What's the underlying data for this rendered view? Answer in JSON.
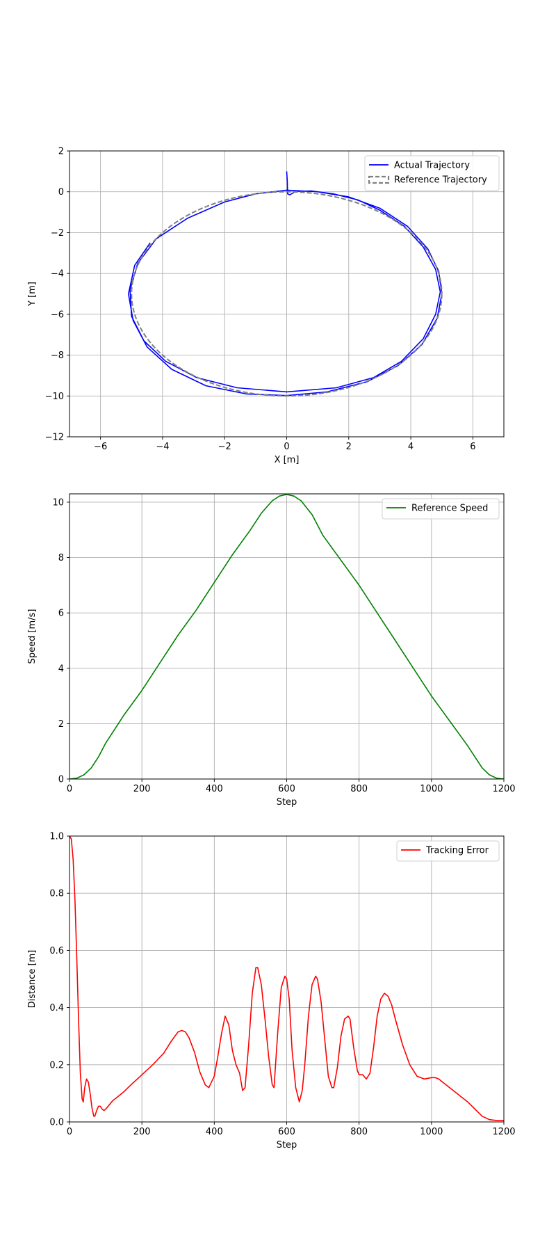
{
  "chart_data": [
    {
      "type": "line",
      "xlabel": "X [m]",
      "ylabel": "Y [m]",
      "xlim": [
        -7,
        7
      ],
      "ylim": [
        -12,
        2
      ],
      "xticks": [
        -6,
        -4,
        -2,
        0,
        2,
        4,
        6
      ],
      "yticks": [
        -12,
        -10,
        -8,
        -6,
        -4,
        -2,
        0,
        2
      ],
      "grid": true,
      "legend_position": "top-right",
      "series": [
        {
          "name": "Actual Trajectory",
          "color": "#0000ff",
          "style": "solid",
          "path": [
            [
              0.0,
              1.0
            ],
            [
              0.02,
              0.5
            ],
            [
              0.03,
              -0.1
            ],
            [
              0.1,
              -0.15
            ],
            [
              0.3,
              0.02
            ],
            [
              0.8,
              0.04
            ],
            [
              1.5,
              -0.1
            ],
            [
              2.3,
              -0.4
            ],
            [
              3.0,
              -0.9
            ],
            [
              3.8,
              -1.7
            ],
            [
              4.4,
              -2.7
            ],
            [
              4.8,
              -3.8
            ],
            [
              4.95,
              -4.9
            ],
            [
              4.8,
              -6.0
            ],
            [
              4.4,
              -7.2
            ],
            [
              3.7,
              -8.3
            ],
            [
              2.8,
              -9.1
            ],
            [
              1.6,
              -9.6
            ],
            [
              0.0,
              -9.8
            ],
            [
              -1.6,
              -9.6
            ],
            [
              -2.9,
              -9.1
            ],
            [
              -3.9,
              -8.3
            ],
            [
              -4.6,
              -7.3
            ],
            [
              -5.0,
              -6.1
            ],
            [
              -5.05,
              -4.8
            ],
            [
              -4.8,
              -3.5
            ],
            [
              -4.2,
              -2.3
            ],
            [
              -3.2,
              -1.3
            ],
            [
              -2.0,
              -0.5
            ],
            [
              -1.0,
              -0.1
            ],
            [
              0.0,
              0.08
            ],
            [
              1.0,
              0.0
            ],
            [
              2.0,
              -0.25
            ],
            [
              3.0,
              -0.8
            ],
            [
              3.9,
              -1.7
            ],
            [
              4.55,
              -2.8
            ],
            [
              4.9,
              -3.9
            ],
            [
              5.0,
              -5.0
            ],
            [
              4.85,
              -6.2
            ],
            [
              4.35,
              -7.5
            ],
            [
              3.6,
              -8.5
            ],
            [
              2.6,
              -9.3
            ],
            [
              1.3,
              -9.8
            ],
            [
              0.0,
              -9.98
            ],
            [
              -1.3,
              -9.9
            ],
            [
              -2.6,
              -9.5
            ],
            [
              -3.7,
              -8.7
            ],
            [
              -4.5,
              -7.6
            ],
            [
              -4.95,
              -6.3
            ],
            [
              -5.1,
              -5.0
            ],
            [
              -4.9,
              -3.6
            ],
            [
              -4.4,
              -2.5
            ]
          ]
        },
        {
          "name": "Reference Trajectory",
          "color": "#808080",
          "style": "dashed",
          "ellipse": {
            "cx": 0,
            "cy": -5,
            "rx": 5,
            "ry": 5
          }
        }
      ]
    },
    {
      "type": "line",
      "xlabel": "Step",
      "ylabel": "Speed [m/s]",
      "xlim": [
        0,
        1200
      ],
      "ylim": [
        0,
        10.3
      ],
      "xticks": [
        0,
        200,
        400,
        600,
        800,
        1000,
        1200
      ],
      "yticks": [
        0,
        2,
        4,
        6,
        8,
        10
      ],
      "grid": true,
      "legend_position": "top-right",
      "series": [
        {
          "name": "Reference Speed",
          "color": "#008000",
          "x": [
            0,
            20,
            40,
            60,
            80,
            100,
            150,
            200,
            250,
            300,
            350,
            400,
            450,
            500,
            530,
            560,
            580,
            600,
            620,
            640,
            670,
            700,
            750,
            800,
            850,
            900,
            950,
            1000,
            1050,
            1100,
            1120,
            1140,
            1160,
            1180,
            1200
          ],
          "values": [
            0.0,
            0.03,
            0.15,
            0.4,
            0.8,
            1.3,
            2.3,
            3.2,
            4.2,
            5.2,
            6.1,
            7.1,
            8.1,
            9.0,
            9.6,
            10.05,
            10.22,
            10.28,
            10.22,
            10.05,
            9.55,
            8.8,
            7.9,
            7.0,
            6.0,
            5.0,
            4.0,
            3.0,
            2.1,
            1.2,
            0.8,
            0.4,
            0.15,
            0.03,
            0.0
          ]
        }
      ]
    },
    {
      "type": "line",
      "xlabel": "Step",
      "ylabel": "Distance [m]",
      "xlim": [
        0,
        1200
      ],
      "ylim": [
        0,
        1.0
      ],
      "xticks": [
        0,
        200,
        400,
        600,
        800,
        1000,
        1200
      ],
      "yticks": [
        0.0,
        0.2,
        0.4,
        0.6,
        0.8,
        1.0
      ],
      "grid": true,
      "legend_position": "top-right",
      "series": [
        {
          "name": "Tracking Error",
          "color": "#ff0000",
          "x": [
            0,
            5,
            10,
            15,
            20,
            25,
            30,
            35,
            38,
            42,
            47,
            52,
            57,
            62,
            67,
            70,
            75,
            80,
            85,
            90,
            95,
            100,
            110,
            120,
            130,
            150,
            170,
            200,
            230,
            260,
            280,
            300,
            310,
            320,
            330,
            345,
            360,
            375,
            385,
            400,
            410,
            420,
            430,
            440,
            450,
            460,
            470,
            478,
            485,
            495,
            505,
            515,
            520,
            530,
            540,
            550,
            560,
            565,
            575,
            585,
            595,
            600,
            607,
            615,
            625,
            635,
            643,
            650,
            660,
            670,
            680,
            685,
            695,
            705,
            715,
            725,
            730,
            740,
            750,
            760,
            770,
            775,
            785,
            795,
            800,
            810,
            820,
            830,
            840,
            850,
            860,
            870,
            880,
            890,
            900,
            920,
            940,
            960,
            980,
            1000,
            1010,
            1020,
            1040,
            1060,
            1080,
            1100,
            1120,
            1140,
            1160,
            1180,
            1200
          ],
          "values": [
            1.0,
            0.99,
            0.92,
            0.78,
            0.58,
            0.36,
            0.17,
            0.08,
            0.07,
            0.12,
            0.15,
            0.14,
            0.1,
            0.05,
            0.02,
            0.02,
            0.04,
            0.055,
            0.055,
            0.045,
            0.04,
            0.045,
            0.06,
            0.075,
            0.085,
            0.105,
            0.13,
            0.165,
            0.2,
            0.24,
            0.28,
            0.315,
            0.32,
            0.315,
            0.295,
            0.245,
            0.175,
            0.13,
            0.12,
            0.16,
            0.23,
            0.31,
            0.37,
            0.34,
            0.25,
            0.2,
            0.17,
            0.11,
            0.12,
            0.27,
            0.45,
            0.54,
            0.54,
            0.48,
            0.36,
            0.23,
            0.13,
            0.12,
            0.31,
            0.47,
            0.51,
            0.5,
            0.43,
            0.25,
            0.12,
            0.07,
            0.11,
            0.2,
            0.37,
            0.48,
            0.51,
            0.5,
            0.42,
            0.29,
            0.16,
            0.12,
            0.12,
            0.19,
            0.3,
            0.36,
            0.37,
            0.36,
            0.26,
            0.18,
            0.165,
            0.165,
            0.15,
            0.17,
            0.26,
            0.37,
            0.43,
            0.45,
            0.44,
            0.41,
            0.36,
            0.27,
            0.2,
            0.16,
            0.15,
            0.155,
            0.155,
            0.15,
            0.13,
            0.11,
            0.09,
            0.07,
            0.045,
            0.02,
            0.008,
            0.005,
            0.005
          ]
        }
      ]
    }
  ]
}
